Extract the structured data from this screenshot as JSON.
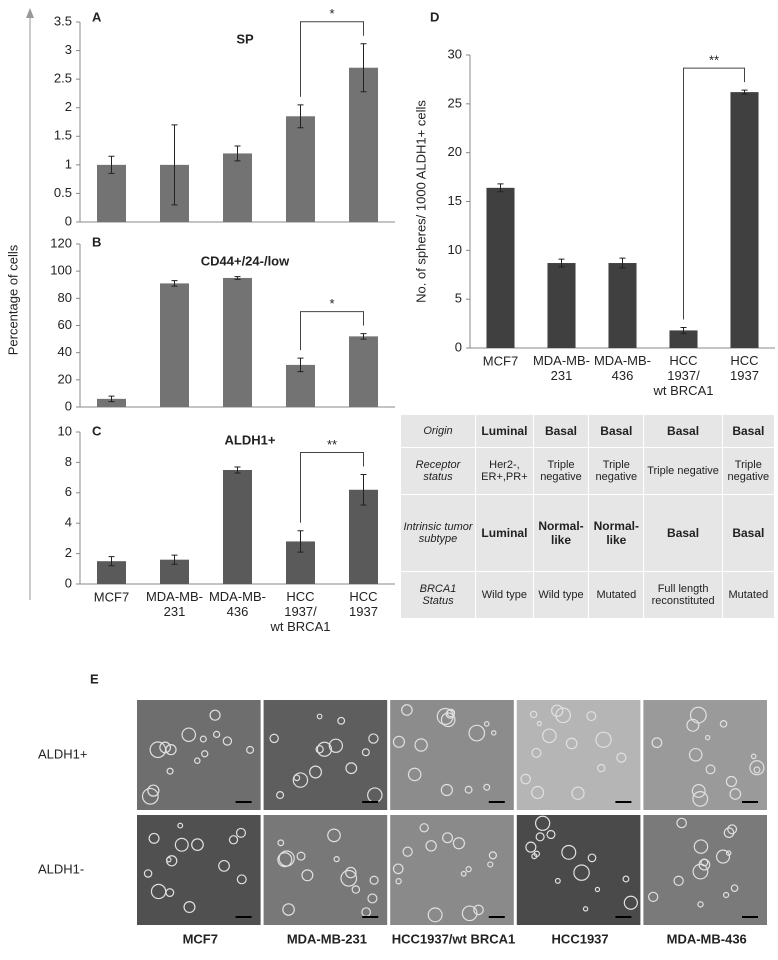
{
  "shared_ylabel": "Percentage of cells",
  "chart_data": [
    {
      "type": "bar",
      "panel_label": "A",
      "title": "SP",
      "color": "#737373",
      "categories": [
        null,
        null,
        null,
        null,
        null
      ],
      "values": [
        1.0,
        1.0,
        1.2,
        1.85,
        2.7
      ],
      "errors": [
        0.15,
        0.7,
        0.13,
        0.2,
        0.42
      ],
      "ylim": [
        0,
        3.5
      ],
      "yticks": [
        0,
        0.5,
        1,
        1.5,
        2,
        2.5,
        3,
        3.5
      ],
      "annotation": "*"
    },
    {
      "type": "bar",
      "panel_label": "B",
      "title": "CD44+/24-/low",
      "color": "#737373",
      "categories": [
        null,
        null,
        null,
        null,
        null
      ],
      "values": [
        6,
        91,
        95,
        31,
        52
      ],
      "errors": [
        2,
        2,
        1,
        5,
        2
      ],
      "ylim": [
        0,
        120
      ],
      "yticks": [
        0,
        20,
        40,
        60,
        80,
        100,
        120
      ],
      "annotation": "*"
    },
    {
      "type": "bar",
      "panel_label": "C",
      "title": "ALDH1+",
      "color": "#5a5a5a",
      "categories": [
        "MCF7",
        "MDA-MB-\n231",
        "MDA-MB-\n436",
        "HCC\n1937/\nwt BRCA1",
        "HCC\n1937"
      ],
      "values": [
        1.5,
        1.6,
        7.5,
        2.8,
        6.2
      ],
      "errors": [
        0.3,
        0.3,
        0.2,
        0.7,
        1.0
      ],
      "ylim": [
        0,
        10
      ],
      "yticks": [
        0,
        2,
        4,
        6,
        8,
        10
      ],
      "annotation": "**"
    },
    {
      "type": "bar",
      "panel_label": "D",
      "ylabel": "No. of spheres/ 1000 ALDH1+ cells",
      "color": "#404040",
      "categories": [
        "MCF7",
        "MDA-MB-\n231",
        "MDA-MB-\n436",
        "HCC\n1937/\nwt BRCA1",
        "HCC\n1937"
      ],
      "values": [
        16.4,
        8.7,
        8.7,
        1.8,
        26.2
      ],
      "errors": [
        0.4,
        0.4,
        0.5,
        0.3,
        0.2
      ],
      "ylim": [
        0,
        30
      ],
      "yticks": [
        0,
        5,
        10,
        15,
        20,
        25,
        30
      ],
      "annotation": "**"
    }
  ],
  "table": {
    "rows": [
      [
        "Origin",
        "Luminal",
        "Basal",
        "Basal",
        "Basal",
        "Basal"
      ],
      [
        "Receptor status",
        "Her2-, ER+,PR+",
        "Triple negative",
        "Triple negative",
        "Triple negative",
        "Triple negative"
      ],
      [
        "Intrinsic tumor subtype",
        "Luminal",
        "Normal-like",
        "Normal-like",
        "Basal",
        "Basal"
      ],
      [
        "BRCA1 Status",
        "Wild type",
        "Wild type",
        "Mutated",
        "Full length reconstituted",
        "Mutated"
      ]
    ]
  },
  "images": {
    "panel_label": "E",
    "row_labels": [
      "ALDH1+",
      "ALDH1-"
    ],
    "column_labels": [
      "MCF7",
      "MDA-MB-231",
      "HCC1937/wt BRCA1",
      "HCC1937",
      "MDA-MB-436"
    ]
  }
}
